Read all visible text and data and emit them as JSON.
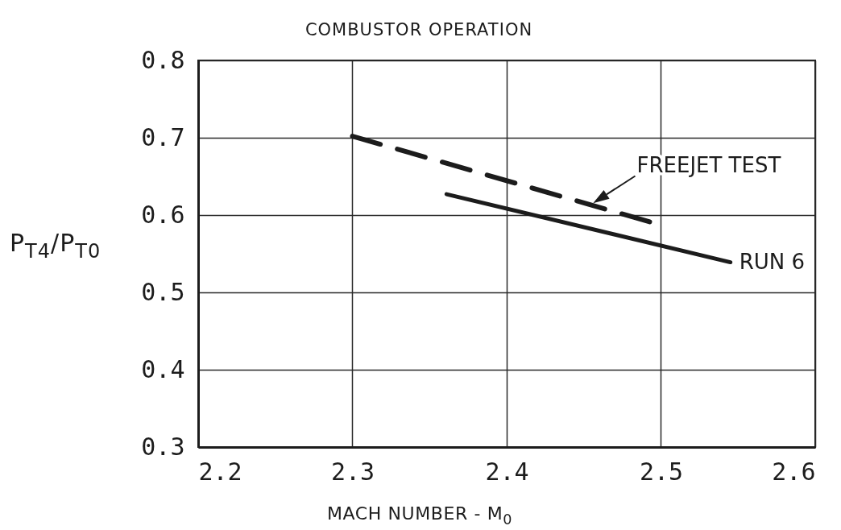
{
  "chart_data": {
    "type": "line",
    "title": "COMBUSTOR OPERATION",
    "xlabel": "MACH NUMBER - M$_{0}$",
    "ylabel": "P$_{T4}$/P$_{T0}$",
    "xlim": [
      2.2,
      2.6
    ],
    "ylim": [
      0.3,
      0.8
    ],
    "xticks": [
      2.2,
      2.3,
      2.4,
      2.5,
      2.6
    ],
    "yticks": [
      0.3,
      0.4,
      0.5,
      0.6,
      0.7,
      0.8
    ],
    "grid": true,
    "series": [
      {
        "name": "FREEJET TEST",
        "color": "#1c1c1c",
        "line_style": "dashed",
        "x": [
          2.3,
          2.5
        ],
        "values": [
          0.702,
          0.587
        ]
      },
      {
        "name": "RUN 6",
        "color": "#1c1c1c",
        "line_style": "solid",
        "x": [
          2.361,
          2.545
        ],
        "values": [
          0.627,
          0.539
        ]
      }
    ]
  }
}
